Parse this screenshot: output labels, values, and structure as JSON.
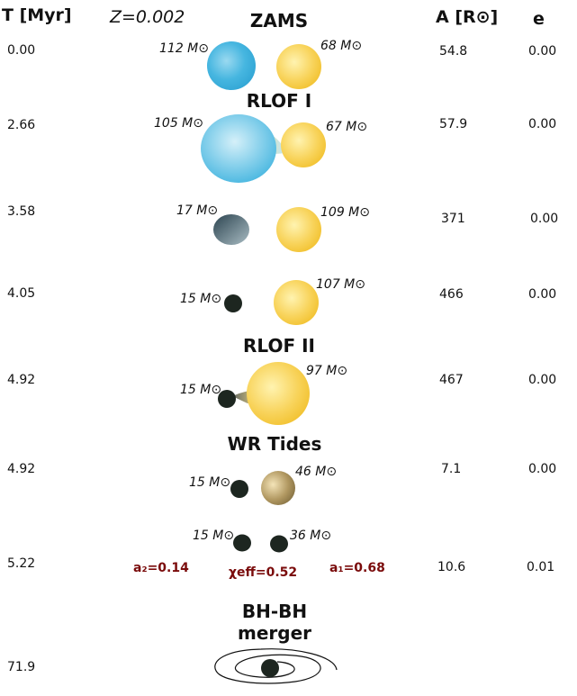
{
  "header": {
    "time_label": "T [Myr]",
    "metallicity": "Z=0.002",
    "separation_label": "A [R⊙]",
    "eccentricity_label": "e"
  },
  "stages": [
    {
      "name": "ZAMS",
      "time": "0.00",
      "m1": "112 M⊙",
      "m2": "68 M⊙",
      "a": "54.8",
      "e": "0.00",
      "star1_color": "#46b6e0",
      "star2_color": "#f7c93a"
    },
    {
      "name": "RLOF I",
      "time": "2.66",
      "m1": "105 M⊙",
      "m2": "67 M⊙",
      "a": "57.9",
      "e": "0.00",
      "star1_color": "#46b6e0",
      "star2_color": "#f7c93a"
    },
    {
      "name": "",
      "time": "3.58",
      "m1": "17 M⊙",
      "m2": "109 M⊙",
      "a": "371",
      "e": "0.00",
      "star1_color": "#4d6f7c",
      "star2_color": "#f7c93a"
    },
    {
      "name": "",
      "time": "4.05",
      "m1": "15 M⊙",
      "m2": "107 M⊙",
      "a": "466",
      "e": "0.00",
      "star1_color": "#1d2620",
      "star2_color": "#f7c93a"
    },
    {
      "name": "RLOF II",
      "time": "4.92",
      "m1": "15 M⊙",
      "m2": "97 M⊙",
      "a": "467",
      "e": "0.00",
      "star1_color": "#1d2620",
      "star2_color": "#f7c93a"
    },
    {
      "name": "WR Tides",
      "time": "4.92",
      "m1": "15 M⊙",
      "m2": "46 M⊙",
      "a": "7.1",
      "e": "0.00",
      "star1_color": "#1d2620",
      "star2_color": "#a68b52"
    },
    {
      "name": "",
      "time": "5.22",
      "m1": "15 M⊙",
      "m2": "36 M⊙",
      "a": "10.6",
      "e": "0.01",
      "star1_color": "#1d2620",
      "star2_color": "#1d2620"
    },
    {
      "name": "BH-BH\nmerger",
      "time": "71.9",
      "star1_color": "#1d2620"
    }
  ],
  "spins": {
    "a2": "a₂=0.14",
    "chi_eff": "χeff=0.52",
    "a1": "a₁=0.68",
    "color": "#7a0b0b"
  }
}
